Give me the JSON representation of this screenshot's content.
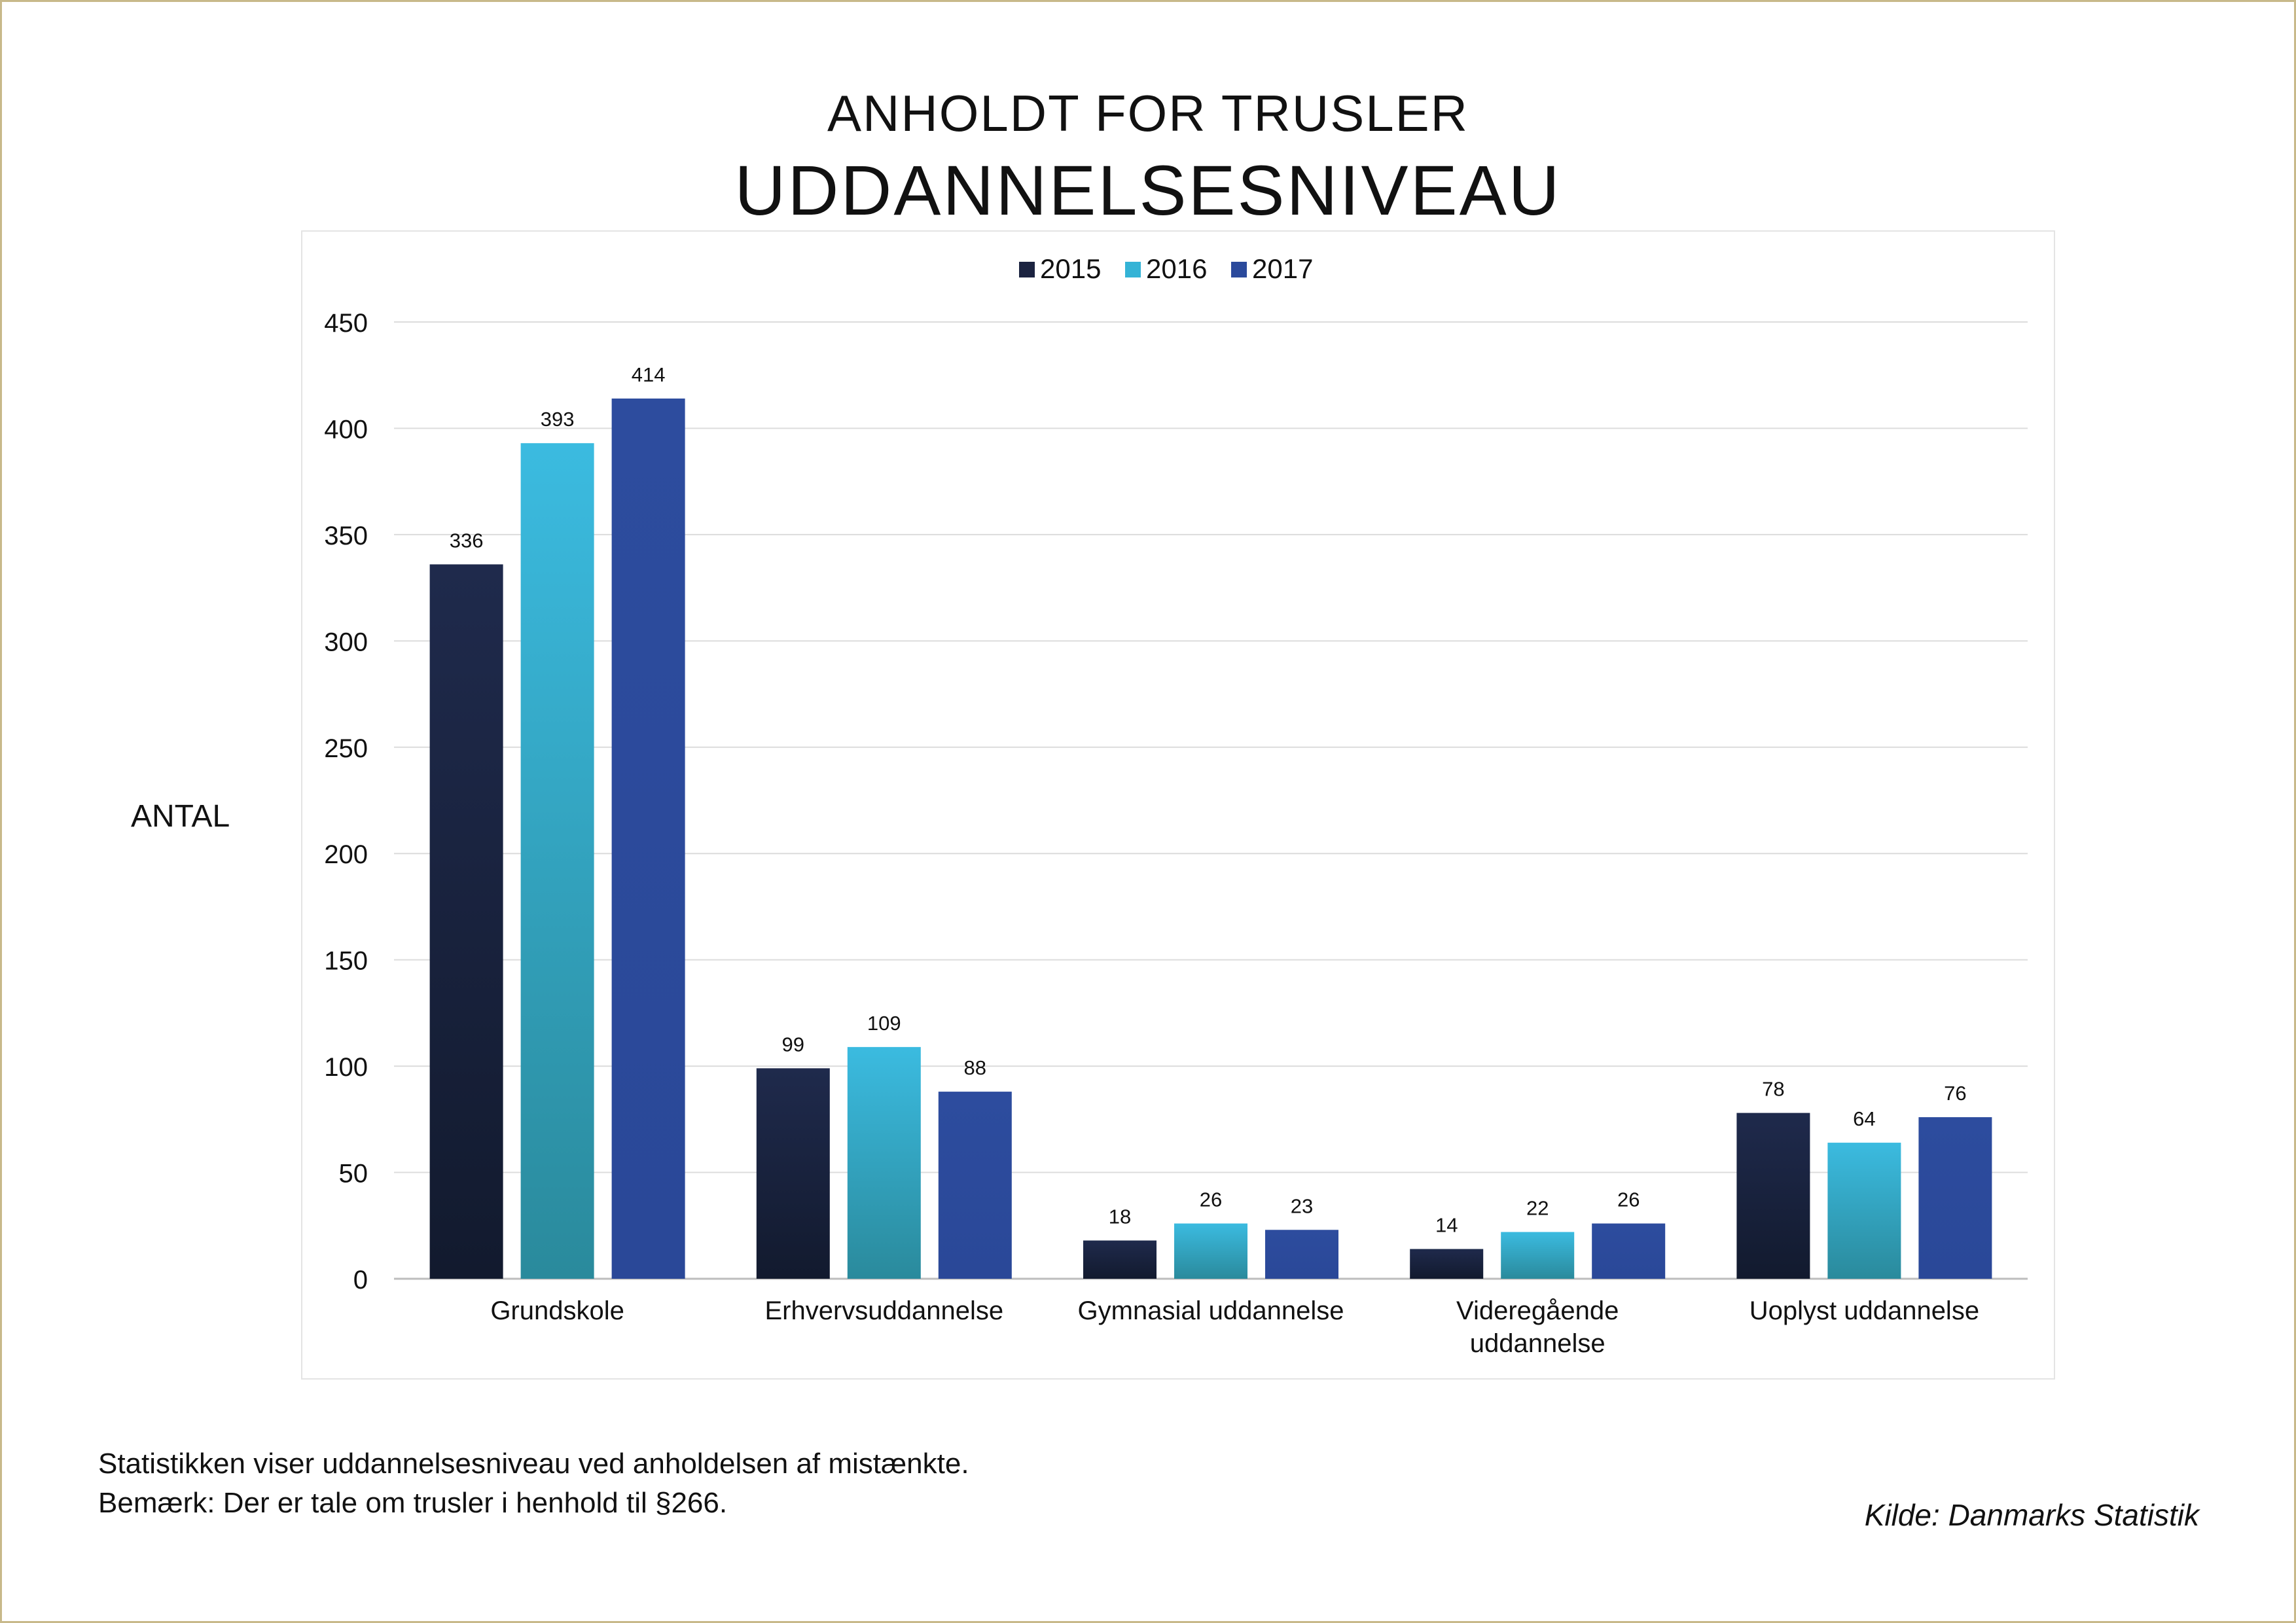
{
  "header": {
    "supertitle": "ANHOLDT FOR TRUSLER",
    "title": "UDDANNELSESNIVEAU"
  },
  "notes": {
    "line1": "Statistikken viser uddannelsesniveau ved anholdelsen af mistænkte.",
    "line2": "Bemærk: Der er tale om trusler i henhold til §266."
  },
  "source": "Kilde: Danmarks Statistik",
  "chart_data": {
    "type": "bar",
    "title": "UDDANNELSESNIVEAU",
    "subtitle": "ANHOLDT FOR TRUSLER",
    "xlabel": "",
    "ylabel": "ANTAL",
    "ylim": [
      0,
      450
    ],
    "yticks": [
      0,
      50,
      100,
      150,
      200,
      250,
      300,
      350,
      400,
      450
    ],
    "grid": true,
    "legend_position": "top-center",
    "categories": [
      [
        "Grundskole"
      ],
      [
        "Erhvervsuddannelse"
      ],
      [
        "Gymnasial uddannelse"
      ],
      [
        "Videregående",
        "uddannelse"
      ],
      [
        "Uoplyst uddannelse"
      ]
    ],
    "series": [
      {
        "name": "2015",
        "color": "#1b2340",
        "values": [
          336,
          99,
          18,
          14,
          78
        ]
      },
      {
        "name": "2016",
        "color": "#34b3d6",
        "values": [
          393,
          109,
          26,
          22,
          64
        ]
      },
      {
        "name": "2017",
        "color": "#2b4a9c",
        "values": [
          414,
          88,
          23,
          26,
          76
        ]
      }
    ]
  }
}
